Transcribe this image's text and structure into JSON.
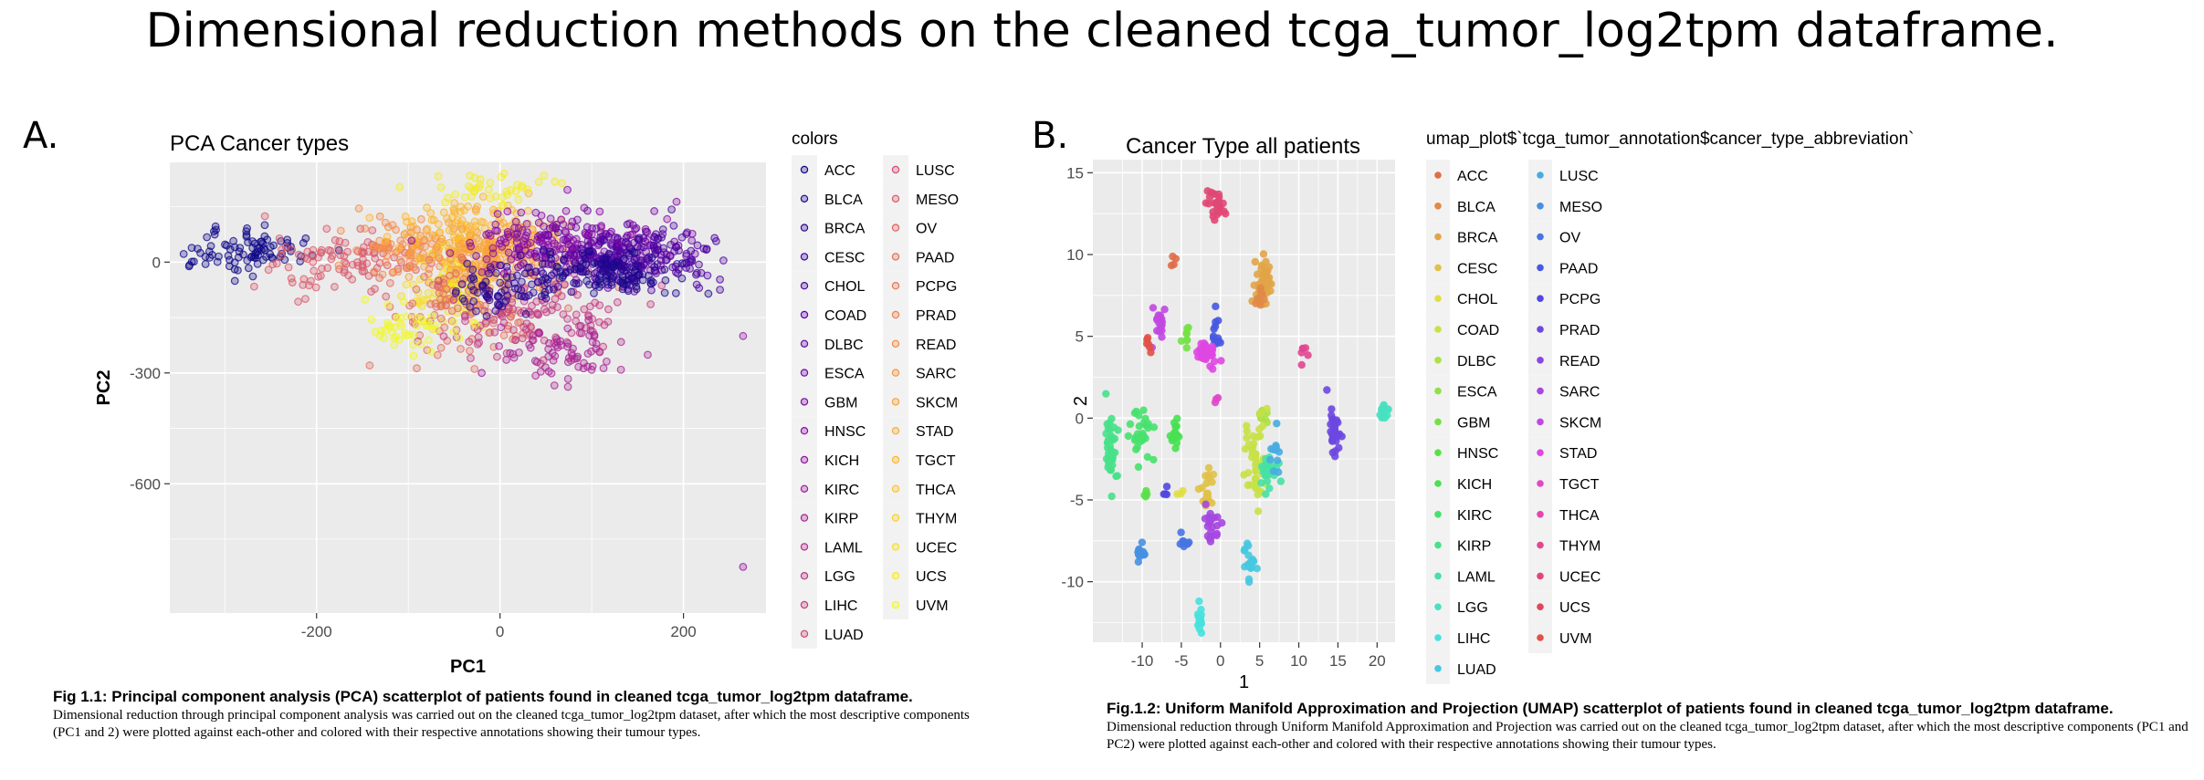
{
  "page": {
    "title": "Dimensional reduction methods on the cleaned tcga_tumor_log2tpm dataframe."
  },
  "panels": [
    {
      "letter": "A.",
      "caption_head": "Fig 1.1: Principal component analysis (PCA) scatterplot of patients found in cleaned tcga_tumor_log2tpm dataframe.",
      "caption_body": "Dimensional reduction through principal component analysis was carried out on the cleaned tcga_tumor_log2tpm dataset, after which the most descriptive components (PC1 and 2) were plotted against each-other and colored with their respective annotations showing their tumour types."
    },
    {
      "letter": "B.",
      "caption_head": "Fig.1.2: Uniform Manifold Approximation and Projection (UMAP) scatterplot of patients found in cleaned tcga_tumor_log2tpm dataframe.",
      "caption_body": "Dimensional reduction through Uniform Manifold Approximation and Projection was carried out on the cleaned tcga_tumor_log2tpm dataset, after which the most descriptive components (PC1 and PC2) were plotted against each-other and colored with their respective annotations showing their tumour types."
    }
  ],
  "categories": [
    "ACC",
    "BLCA",
    "BRCA",
    "CESC",
    "CHOL",
    "COAD",
    "DLBC",
    "ESCA",
    "GBM",
    "HNSC",
    "KICH",
    "KIRC",
    "KIRP",
    "LAML",
    "LGG",
    "LIHC",
    "LUAD",
    "LUSC",
    "MESO",
    "OV",
    "PAAD",
    "PCPG",
    "PRAD",
    "READ",
    "SARC",
    "SKCM",
    "STAD",
    "TGCT",
    "THCA",
    "THYM",
    "UCEC",
    "UCS",
    "UVM"
  ],
  "chart_data": [
    {
      "type": "scatter",
      "title": "PCA Cancer types",
      "xlabel": "PC1",
      "ylabel": "PC2",
      "xlim": [
        -360,
        290
      ],
      "ylim": [
        -950,
        270
      ],
      "xticks": [
        -200,
        0,
        200
      ],
      "yticks": [
        0,
        -300,
        -600
      ],
      "grid": true,
      "legend_title": "colors",
      "legend_placement": "right",
      "palette": "plasma",
      "marker": "open-circle",
      "clusters": [
        {
          "category_index": 0,
          "center": [
            -280,
            30
          ],
          "spread": [
            40,
            30
          ],
          "n": 90
        },
        {
          "category_index": 18,
          "center": [
            -170,
            0
          ],
          "spread": [
            50,
            40
          ],
          "n": 100
        },
        {
          "category_index": 23,
          "center": [
            -100,
            40
          ],
          "spread": [
            30,
            45
          ],
          "n": 90
        },
        {
          "category_index": 30,
          "center": [
            -50,
            -60
          ],
          "spread": [
            25,
            45
          ],
          "n": 110
        },
        {
          "category_index": 27,
          "center": [
            -30,
            80
          ],
          "spread": [
            40,
            40
          ],
          "n": 140
        },
        {
          "category_index": 25,
          "center": [
            -10,
            10
          ],
          "spread": [
            35,
            45
          ],
          "n": 160
        },
        {
          "category_index": 20,
          "center": [
            -30,
            -120
          ],
          "spread": [
            50,
            60
          ],
          "n": 120
        },
        {
          "category_index": 15,
          "center": [
            40,
            -150
          ],
          "spread": [
            50,
            60
          ],
          "n": 110
        },
        {
          "category_index": 12,
          "center": [
            70,
            -250
          ],
          "spread": [
            35,
            45
          ],
          "n": 70
        },
        {
          "category_index": 9,
          "center": [
            60,
            60
          ],
          "spread": [
            50,
            45
          ],
          "n": 150
        },
        {
          "category_index": 7,
          "center": [
            120,
            20
          ],
          "spread": [
            45,
            40
          ],
          "n": 150
        },
        {
          "category_index": 4,
          "center": [
            150,
            10
          ],
          "spread": [
            45,
            40
          ],
          "n": 160
        },
        {
          "category_index": 1,
          "center": [
            110,
            -30
          ],
          "spread": [
            40,
            30
          ],
          "n": 130
        },
        {
          "category_index": 2,
          "center": [
            0,
            -80
          ],
          "spread": [
            25,
            35
          ],
          "n": 70
        },
        {
          "category_index": 32,
          "center": [
            -100,
            -180
          ],
          "spread": [
            25,
            30
          ],
          "n": 45
        },
        {
          "category_index": 31,
          "center": [
            0,
            200
          ],
          "spread": [
            40,
            20
          ],
          "n": 40
        }
      ],
      "outliers": [
        [
          265,
          -825
        ],
        [
          265,
          -200
        ],
        [
          -20,
          -300
        ]
      ]
    },
    {
      "type": "scatter",
      "title": "Cancer Type all patients",
      "xlabel": "1",
      "ylabel": "2",
      "xlim": [
        -16.3,
        22.3
      ],
      "ylim": [
        -13.7,
        15.8
      ],
      "xticks": [
        -10,
        -5,
        0,
        5,
        10,
        15,
        20
      ],
      "yticks": [
        15,
        10,
        5,
        0,
        -5,
        -10
      ],
      "grid": true,
      "legend_title": "umap_plot$`tcga_tumor_annotation$cancer_type_abbreviation`",
      "legend_placement": "right",
      "palette": "hue",
      "marker": "filled-circle",
      "clusters": [
        {
          "category_index": 30,
          "center": [
            -0.5,
            13.2
          ],
          "spread": [
            0.6,
            0.5
          ],
          "n": 25
        },
        {
          "category_index": 2,
          "center": [
            5.5,
            8.5
          ],
          "spread": [
            0.5,
            0.6
          ],
          "n": 40
        },
        {
          "category_index": 1,
          "center": [
            4.8,
            7.3
          ],
          "spread": [
            0.3,
            0.4
          ],
          "n": 10
        },
        {
          "category_index": 0,
          "center": [
            -6.0,
            9.6
          ],
          "spread": [
            0.2,
            0.2
          ],
          "n": 4
        },
        {
          "category_index": 20,
          "center": [
            -0.5,
            5.2
          ],
          "spread": [
            0.3,
            0.5
          ],
          "n": 12
        },
        {
          "category_index": 25,
          "center": [
            -7.8,
            5.8
          ],
          "spread": [
            0.4,
            0.5
          ],
          "n": 18
        },
        {
          "category_index": 26,
          "center": [
            -2.0,
            4.0
          ],
          "spread": [
            1.0,
            0.4
          ],
          "n": 30
        },
        {
          "category_index": 8,
          "center": [
            -4.2,
            5.0
          ],
          "spread": [
            0.3,
            0.4
          ],
          "n": 8
        },
        {
          "category_index": 32,
          "center": [
            -9.2,
            4.6
          ],
          "spread": [
            0.3,
            0.3
          ],
          "n": 6
        },
        {
          "category_index": 29,
          "center": [
            10.5,
            3.8
          ],
          "spread": [
            0.3,
            0.3
          ],
          "n": 6
        },
        {
          "category_index": 22,
          "center": [
            14.5,
            -0.7
          ],
          "spread": [
            0.4,
            0.8
          ],
          "n": 30
        },
        {
          "category_index": 14,
          "center": [
            20.8,
            0.2
          ],
          "spread": [
            0.3,
            0.3
          ],
          "n": 14
        },
        {
          "category_index": 12,
          "center": [
            -14.0,
            -2.0
          ],
          "spread": [
            0.4,
            1.2
          ],
          "n": 40
        },
        {
          "category_index": 11,
          "center": [
            -10.0,
            -1.2
          ],
          "spread": [
            0.8,
            0.7
          ],
          "n": 30
        },
        {
          "category_index": 10,
          "center": [
            -6.0,
            -1.0
          ],
          "spread": [
            0.4,
            0.5
          ],
          "n": 15
        },
        {
          "category_index": 6,
          "center": [
            5.6,
            0.0
          ],
          "spread": [
            0.3,
            0.4
          ],
          "n": 10
        },
        {
          "category_index": 5,
          "center": [
            4.5,
            -2.5
          ],
          "spread": [
            0.7,
            1.2
          ],
          "n": 45
        },
        {
          "category_index": 13,
          "center": [
            6.0,
            -3.3
          ],
          "spread": [
            0.6,
            0.6
          ],
          "n": 30
        },
        {
          "category_index": 17,
          "center": [
            7.0,
            -2.0
          ],
          "spread": [
            0.3,
            0.8
          ],
          "n": 12
        },
        {
          "category_index": 3,
          "center": [
            -1.5,
            -4.3
          ],
          "spread": [
            0.5,
            0.6
          ],
          "n": 18
        },
        {
          "category_index": 24,
          "center": [
            -1.0,
            -6.5
          ],
          "spread": [
            0.5,
            0.6
          ],
          "n": 20
        },
        {
          "category_index": 21,
          "center": [
            -7.0,
            -4.6
          ],
          "spread": [
            0.2,
            0.2
          ],
          "n": 4
        },
        {
          "category_index": 9,
          "center": [
            -9.5,
            -4.5
          ],
          "spread": [
            0.2,
            0.2
          ],
          "n": 4
        },
        {
          "category_index": 19,
          "center": [
            -4.5,
            -7.6
          ],
          "spread": [
            0.3,
            0.2
          ],
          "n": 10
        },
        {
          "category_index": 18,
          "center": [
            -10.2,
            -8.3
          ],
          "spread": [
            0.4,
            0.3
          ],
          "n": 12
        },
        {
          "category_index": 16,
          "center": [
            3.8,
            -8.8
          ],
          "spread": [
            0.4,
            0.6
          ],
          "n": 20
        },
        {
          "category_index": 15,
          "center": [
            -2.5,
            -12.3
          ],
          "spread": [
            0.2,
            0.6
          ],
          "n": 14
        },
        {
          "category_index": 27,
          "center": [
            -0.5,
            1.2
          ],
          "spread": [
            0.1,
            0.2
          ],
          "n": 3
        },
        {
          "category_index": 4,
          "center": [
            -5.0,
            -4.6
          ],
          "spread": [
            0.2,
            0.2
          ],
          "n": 3
        }
      ]
    }
  ]
}
